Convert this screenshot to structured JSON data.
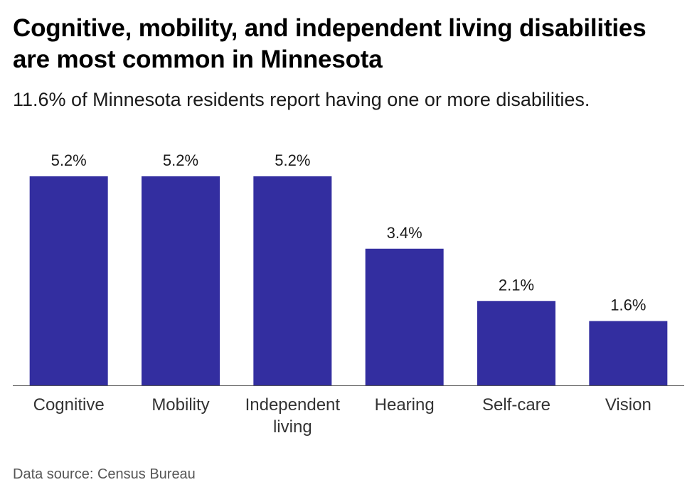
{
  "header": {
    "title": "Cognitive, mobility, and independent living disabilities are most common in Minnesota",
    "subtitle": "11.6% of Minnesota residents report having one or more disabilities."
  },
  "footer": {
    "source": "Data source: Census Bureau"
  },
  "colors": {
    "bar": "#332ea0",
    "axis": "#555555"
  },
  "chart_data": {
    "type": "bar",
    "categories": [
      "Cognitive",
      "Mobility",
      "Independent living",
      "Hearing",
      "Self-care",
      "Vision"
    ],
    "category_lines": [
      [
        "Cognitive"
      ],
      [
        "Mobility"
      ],
      [
        "Independent",
        "living"
      ],
      [
        "Hearing"
      ],
      [
        "Self-care"
      ],
      [
        "Vision"
      ]
    ],
    "values": [
      5.2,
      5.2,
      5.2,
      3.4,
      2.1,
      1.6
    ],
    "value_labels": [
      "5.2%",
      "5.2%",
      "5.2%",
      "3.4%",
      "2.1%",
      "1.6%"
    ],
    "title": "Cognitive, mobility, and independent living disabilities are most common in Minnesota",
    "subtitle": "11.6% of Minnesota residents report having one or more disabilities.",
    "xlabel": "",
    "ylabel": "",
    "ylim": [
      0,
      5.2
    ],
    "grid": false,
    "legend": "none",
    "data_labels": "above bars"
  }
}
